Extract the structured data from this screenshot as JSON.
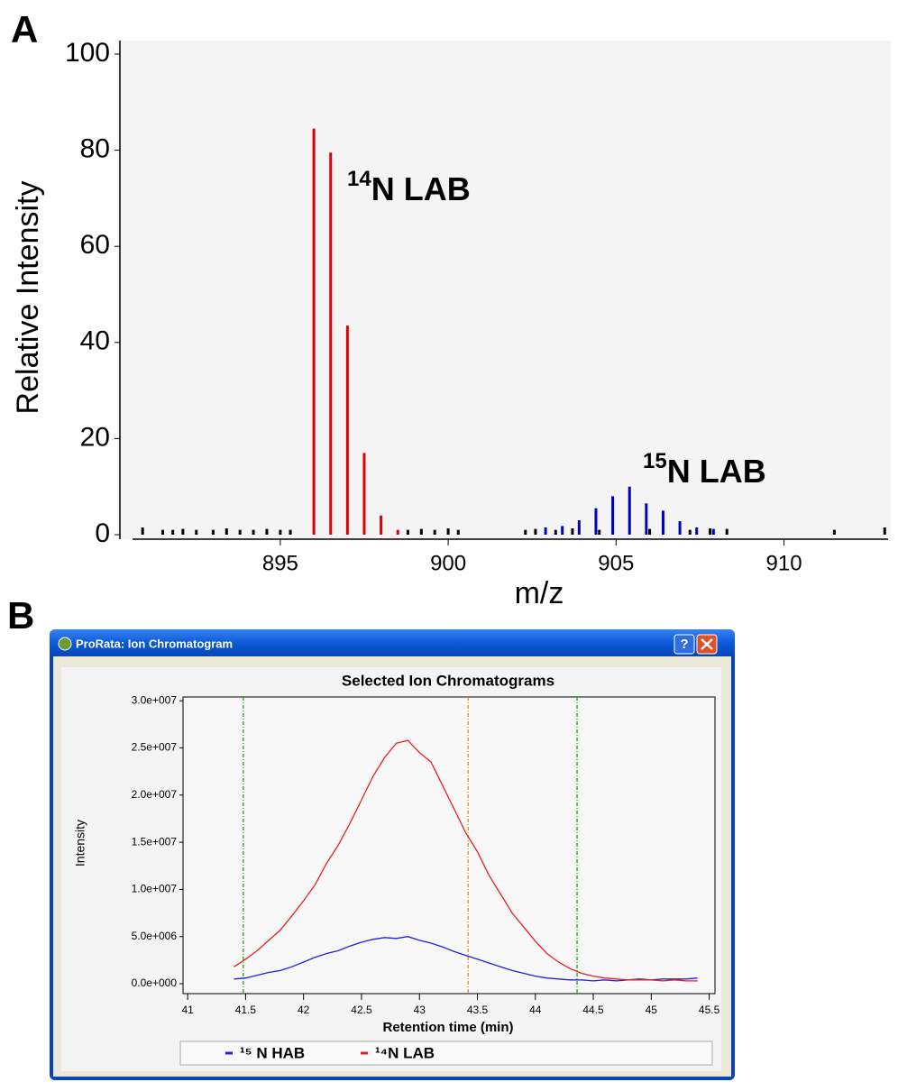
{
  "panels": [
    "A",
    "B"
  ],
  "window": {
    "title": "ProRata: Ion Chromatogram",
    "help": "?"
  },
  "chart_data": [
    {
      "type": "bar",
      "xlabel": "m/z",
      "ylabel": "Relative Intensity",
      "xlim": [
        890.6,
        913.1
      ],
      "ylim": [
        0,
        100
      ],
      "xticks": [
        895,
        900,
        905,
        910
      ],
      "yticks": [
        0,
        20,
        40,
        60,
        80,
        100
      ],
      "annotations": [
        {
          "sup": "14",
          "text": "N LAB"
        },
        {
          "sup": "15",
          "text": "N LAB"
        }
      ],
      "series": [
        {
          "color": "#000000",
          "x": [
            890.9,
            891.5,
            891.8,
            892.1,
            892.5,
            893.0,
            893.4,
            893.8,
            894.2,
            894.6,
            895.0,
            895.3,
            898.8,
            899.2,
            899.6,
            900.0,
            900.3,
            902.3,
            902.6,
            903.2,
            903.7,
            904.5,
            906.0,
            907.2,
            907.8,
            908.3,
            911.5,
            913.0
          ],
          "values": [
            1.5,
            1,
            1,
            1.2,
            1,
            1,
            1.3,
            1,
            1,
            1.2,
            1,
            1,
            1,
            1.2,
            1,
            1.3,
            1,
            1,
            1.2,
            1,
            1.3,
            1,
            1.2,
            1,
            1.3,
            1.2,
            1,
            1.5
          ]
        },
        {
          "color": "#e00000",
          "x": [
            896.0,
            896.5,
            897.0,
            897.5,
            898.0,
            898.5
          ],
          "values": [
            84.5,
            79.5,
            43.5,
            17,
            4,
            1
          ]
        },
        {
          "color": "#0000c0",
          "x": [
            902.9,
            903.4,
            903.9,
            904.4,
            904.9,
            905.4,
            905.9,
            906.4,
            906.9,
            907.4,
            907.9
          ],
          "values": [
            1.5,
            1.8,
            3,
            5.5,
            8,
            10,
            6.5,
            5,
            2.8,
            1.5,
            1.2
          ]
        }
      ]
    },
    {
      "type": "line",
      "title": "Selected Ion Chromatograms",
      "xlabel": "Retention time (min)",
      "ylabel": "Intensity",
      "xlim": [
        40.96,
        45.55
      ],
      "ylim": [
        -1050000,
        30400000
      ],
      "xticks": [
        41,
        41.5,
        42,
        42.5,
        43,
        43.5,
        44,
        44.5,
        45,
        45.5
      ],
      "yticks": [
        {
          "value": 0,
          "label": "0.0e+000"
        },
        {
          "value": 5000000,
          "label": "5.0e+006"
        },
        {
          "value": 10000000,
          "label": "1.0e+007"
        },
        {
          "value": 15000000,
          "label": "1.5e+007"
        },
        {
          "value": 20000000,
          "label": "2.0e+007"
        },
        {
          "value": 25000000,
          "label": "2.5e+007"
        },
        {
          "value": 30000000,
          "label": "3.0e+007"
        }
      ],
      "vlines": [
        {
          "value": 41.48,
          "color": "#00a000"
        },
        {
          "value": 43.42,
          "color": "#d09000"
        },
        {
          "value": 44.36,
          "color": "#00a000"
        }
      ],
      "x": [
        41.4,
        41.5,
        41.6,
        41.7,
        41.8,
        41.9,
        42.0,
        42.1,
        42.2,
        42.3,
        42.4,
        42.5,
        42.6,
        42.7,
        42.8,
        42.9,
        43.0,
        43.1,
        43.2,
        43.3,
        43.4,
        43.5,
        43.6,
        43.7,
        43.8,
        43.9,
        44.0,
        44.1,
        44.2,
        44.3,
        44.4,
        44.5,
        44.6,
        44.7,
        44.8,
        44.9,
        45.0,
        45.1,
        45.2,
        45.3,
        45.4
      ],
      "series": [
        {
          "name": "¹⁵ N HAB",
          "color": "#2020e0",
          "values": [
            500000,
            600000,
            900000,
            1200000,
            1400000,
            1800000,
            2300000,
            2800000,
            3200000,
            3500000,
            4000000,
            4400000,
            4700000,
            4900000,
            4800000,
            5000000,
            4600000,
            4300000,
            3900000,
            3400000,
            3000000,
            2600000,
            2200000,
            1800000,
            1400000,
            1100000,
            800000,
            600000,
            500000,
            400000,
            400000,
            300000,
            400000,
            300000,
            400000,
            500000,
            400000,
            500000,
            500000,
            500000,
            600000
          ]
        },
        {
          "name": "¹⁴N LAB",
          "color": "#e82020",
          "values": [
            1800000,
            2600000,
            3500000,
            4600000,
            5700000,
            7200000,
            8800000,
            10500000,
            12800000,
            14700000,
            17000000,
            19500000,
            22000000,
            24000000,
            25500000,
            25800000,
            24500000,
            23500000,
            21000000,
            18500000,
            16000000,
            14000000,
            11500000,
            9500000,
            7500000,
            6000000,
            4500000,
            3200000,
            2300000,
            1600000,
            1100000,
            800000,
            600000,
            500000,
            400000,
            400000,
            400000,
            300000,
            400000,
            300000,
            300000
          ]
        }
      ]
    }
  ]
}
